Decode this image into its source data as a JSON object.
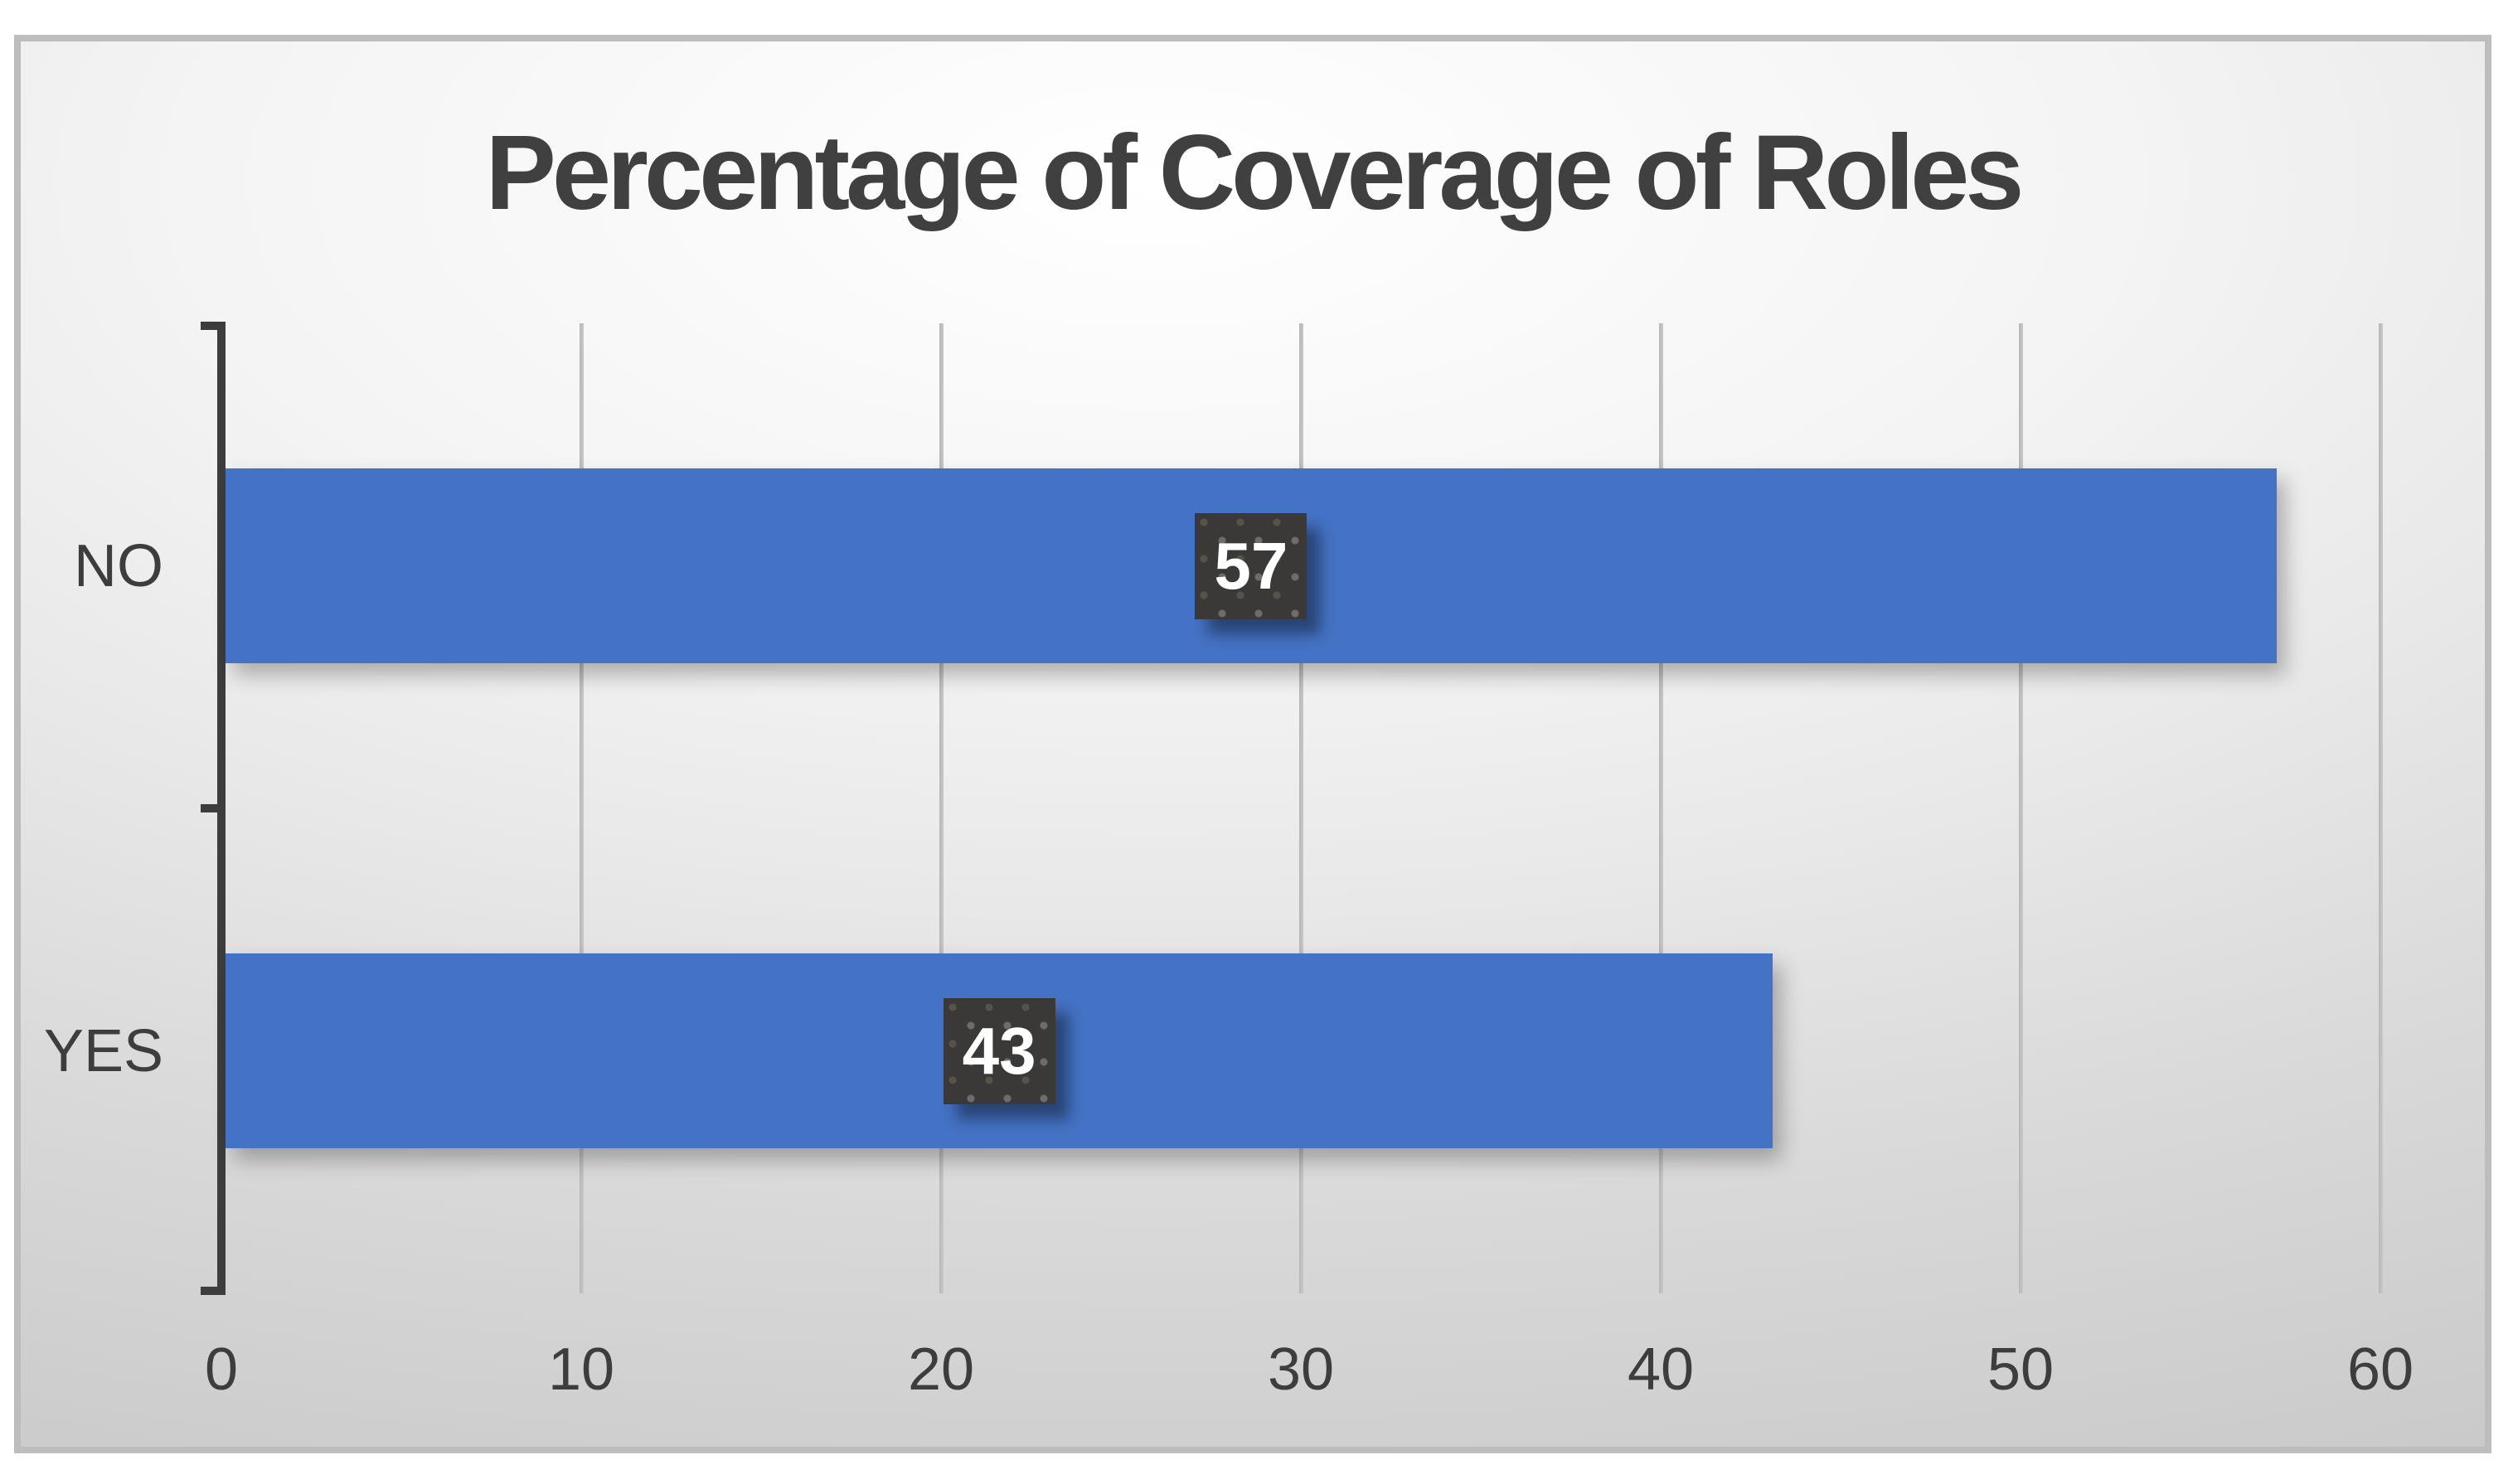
{
  "chart_data": {
    "type": "bar",
    "orientation": "horizontal",
    "title": "Percentage of Coverage of Roles",
    "categories": [
      "NO",
      "YES"
    ],
    "values": [
      57,
      43
    ],
    "data_labels": [
      "57",
      "43"
    ],
    "series": [
      {
        "name": "Percentage of Coverage of Roles",
        "values": [
          57,
          43
        ]
      }
    ],
    "xlabel": "",
    "ylabel": "",
    "xlim": [
      0,
      60
    ],
    "x_ticks": [
      0,
      10,
      20,
      30,
      40,
      50,
      60
    ],
    "grid": "vertical-major-only",
    "legend": "none",
    "colors": {
      "bar": "#4472C4",
      "data_label_box": "#3A3938",
      "data_label_dots": "#6E6C67",
      "data_label_text": "#FFFFFF",
      "axis_line": "#3D3D3D",
      "text": "#404040",
      "gridline": "#BDBDBD",
      "frame_border": "#BDBDBD",
      "background_center": "#FFFFFF",
      "background_edge": "#C7C7C7"
    }
  }
}
